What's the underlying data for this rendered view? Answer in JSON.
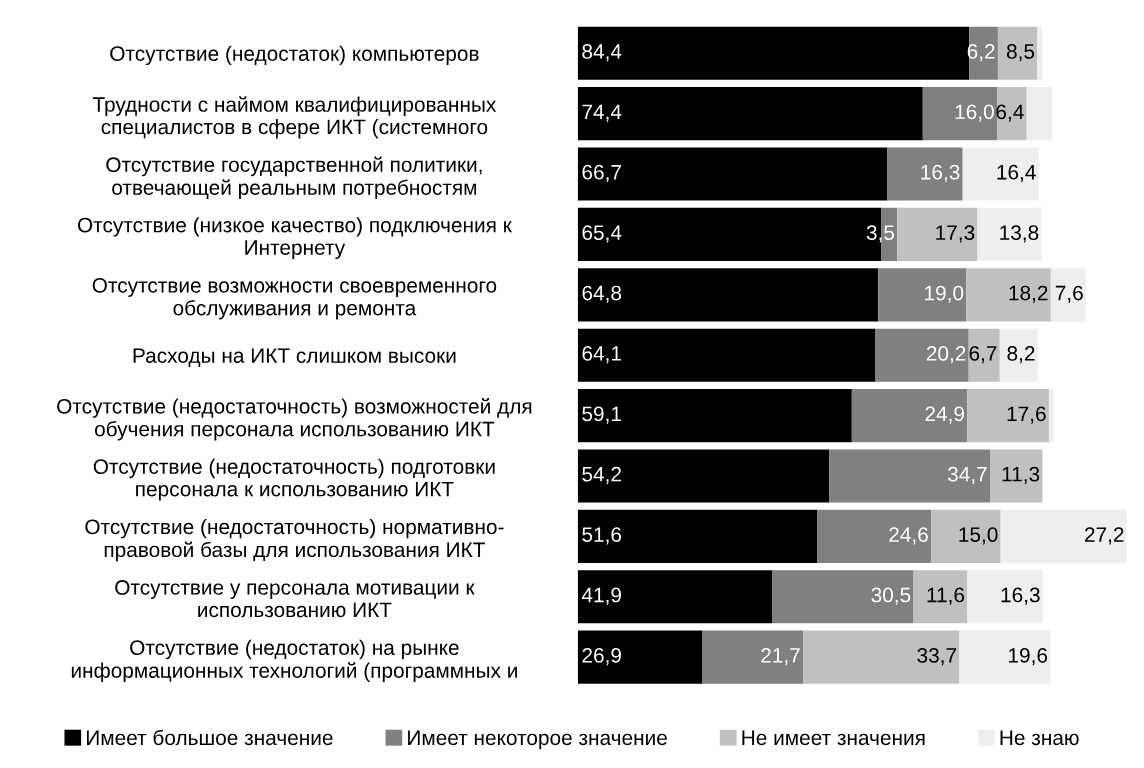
{
  "chart_data": {
    "type": "bar",
    "orientation": "horizontal",
    "stacked": true,
    "legend": "bottom",
    "grid": false,
    "categories": [
      "Отсутствие (недостаток) компьютеров",
      "Трудности с наймом квалифицированных\nспециалистов в сфере ИКТ (системного",
      "Отсутствие государственной политики,\nотвечающей реальным потребностям",
      "Отсутствие (низкое качество) подключения к\nИнтернету",
      "Отсутствие возможности своевременного\nобслуживания и ремонта",
      "Расходы на ИКТ слишком высоки",
      "Отсутствие (недостаточность) возможностей для\nобучения персонала использованию ИКТ",
      "Отсутствие (недостаточность) подготовки\nперсонала к использованию ИКТ",
      "Отсутствие (недостаточность) нормативно-\nправовой базы для использования ИКТ",
      "Отсутствие у персонала мотивации к\nиспользованию ИКТ",
      "Отсутствие (недостаток) на рынке\nинформационных технологий (программных и"
    ],
    "series": [
      {
        "name": "Имеет большое значение",
        "color": "#000000",
        "values": [
          84.4,
          74.4,
          66.7,
          65.4,
          64.8,
          64.1,
          59.1,
          54.2,
          51.6,
          41.9,
          26.9
        ],
        "value_labels": [
          "84,4",
          "74,4",
          "66,7",
          "65,4",
          "64,8",
          "64,1",
          "59,1",
          "54,2",
          "51,6",
          "41,9",
          "26,9"
        ]
      },
      {
        "name": "Имеет некоторое значение",
        "color": "#808080",
        "values": [
          6.2,
          16.0,
          16.3,
          3.5,
          19.0,
          20.2,
          24.9,
          34.7,
          24.6,
          30.5,
          21.7
        ],
        "value_labels": [
          "6,2",
          "16,0",
          "16,3",
          "3,5",
          "19,0",
          "20,2",
          "24,9",
          "34,7",
          "24,6",
          "30,5",
          "21,7"
        ]
      },
      {
        "name": "Не имеет значения",
        "color": "#c0c0c0",
        "values": [
          8.5,
          6.4,
          null,
          17.3,
          18.2,
          6.7,
          17.6,
          11.3,
          15.0,
          11.6,
          33.7
        ],
        "value_labels": [
          "8,5",
          "6,4",
          null,
          "17,3",
          "18,2",
          "6,7",
          "17,6",
          "11,3",
          "15,0",
          "11,6",
          "33,7"
        ]
      },
      {
        "name": "Не знаю",
        "color": "#eeeeee",
        "values": [
          1.0,
          5.5,
          16.4,
          13.8,
          7.6,
          8.2,
          1.0,
          null,
          27.2,
          16.3,
          19.6
        ],
        "value_labels": [
          null,
          null,
          "16,4",
          "13,8",
          "7,6",
          "8,2",
          null,
          null,
          "27,2",
          "16,3",
          "19,6"
        ]
      }
    ]
  }
}
